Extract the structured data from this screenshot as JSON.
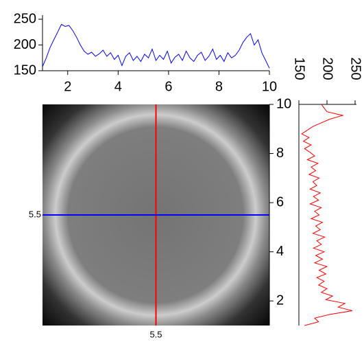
{
  "chart_data": [
    {
      "type": "line",
      "color": "#0000ff",
      "x": [
        1.0,
        1.15,
        1.3,
        1.45,
        1.6,
        1.75,
        1.9,
        2.05,
        2.2,
        2.35,
        2.5,
        2.65,
        2.8,
        2.95,
        3.1,
        3.25,
        3.4,
        3.55,
        3.7,
        3.85,
        4.0,
        4.15,
        4.3,
        4.45,
        4.6,
        4.75,
        4.9,
        5.05,
        5.2,
        5.35,
        5.5,
        5.65,
        5.8,
        5.95,
        6.1,
        6.25,
        6.4,
        6.55,
        6.7,
        6.85,
        7.0,
        7.15,
        7.3,
        7.45,
        7.6,
        7.75,
        7.9,
        8.05,
        8.2,
        8.35,
        8.5,
        8.65,
        8.8,
        8.95,
        9.1,
        9.25,
        9.4,
        9.55,
        9.7,
        9.85,
        10.0
      ],
      "values": [
        158,
        175,
        195,
        210,
        225,
        240,
        236,
        238,
        228,
        215,
        200,
        188,
        182,
        186,
        178,
        183,
        190,
        178,
        185,
        172,
        180,
        160,
        178,
        185,
        170,
        178,
        168,
        182,
        175,
        192,
        170,
        180,
        172,
        188,
        165,
        176,
        182,
        170,
        188,
        175,
        168,
        180,
        186,
        170,
        178,
        192,
        172,
        180,
        168,
        185,
        175,
        180,
        190,
        205,
        215,
        222,
        200,
        210,
        185,
        170,
        155
      ],
      "xlim": [
        1,
        10
      ],
      "ylim": [
        150,
        250
      ],
      "xticks": [
        2,
        4,
        6,
        8,
        10
      ],
      "yticks": [
        150,
        200,
        250
      ]
    },
    {
      "type": "line",
      "orientation": "vertical",
      "color": "#ff0000",
      "y": [
        1.0,
        1.15,
        1.3,
        1.45,
        1.6,
        1.75,
        1.9,
        2.05,
        2.2,
        2.35,
        2.5,
        2.65,
        2.8,
        2.95,
        3.1,
        3.25,
        3.4,
        3.55,
        3.7,
        3.85,
        4.0,
        4.15,
        4.3,
        4.45,
        4.6,
        4.75,
        4.9,
        5.05,
        5.2,
        5.35,
        5.5,
        5.65,
        5.8,
        5.95,
        6.1,
        6.25,
        6.4,
        6.55,
        6.7,
        6.85,
        7.0,
        7.15,
        7.3,
        7.45,
        7.6,
        7.75,
        7.9,
        8.05,
        8.2,
        8.35,
        8.5,
        8.65,
        8.8,
        8.95,
        9.1,
        9.25,
        9.4,
        9.55,
        9.7,
        9.85,
        10.0
      ],
      "values": [
        160,
        185,
        178,
        205,
        245,
        220,
        232,
        198,
        210,
        190,
        200,
        185,
        195,
        182,
        198,
        186,
        200,
        178,
        192,
        180,
        195,
        176,
        190,
        182,
        196,
        175,
        188,
        180,
        192,
        172,
        186,
        178,
        190,
        170,
        185,
        176,
        188,
        170,
        182,
        175,
        186,
        168,
        180,
        172,
        184,
        165,
        178,
        170,
        160,
        172,
        158,
        168,
        155,
        165,
        175,
        190,
        205,
        228,
        200,
        195,
        190
      ],
      "xlim": [
        150,
        250
      ],
      "ylim": [
        1,
        10
      ],
      "xticks": [
        150,
        200,
        250
      ]
    },
    {
      "type": "image",
      "xlim": [
        1,
        10
      ],
      "ylim": [
        1,
        10
      ],
      "yticks": [
        2,
        4,
        6,
        8,
        10
      ],
      "crosshair_x": 5.5,
      "crosshair_y": 5.5,
      "crosshair_x_color": "#ff0000",
      "crosshair_y_color": "#0000ff"
    }
  ]
}
